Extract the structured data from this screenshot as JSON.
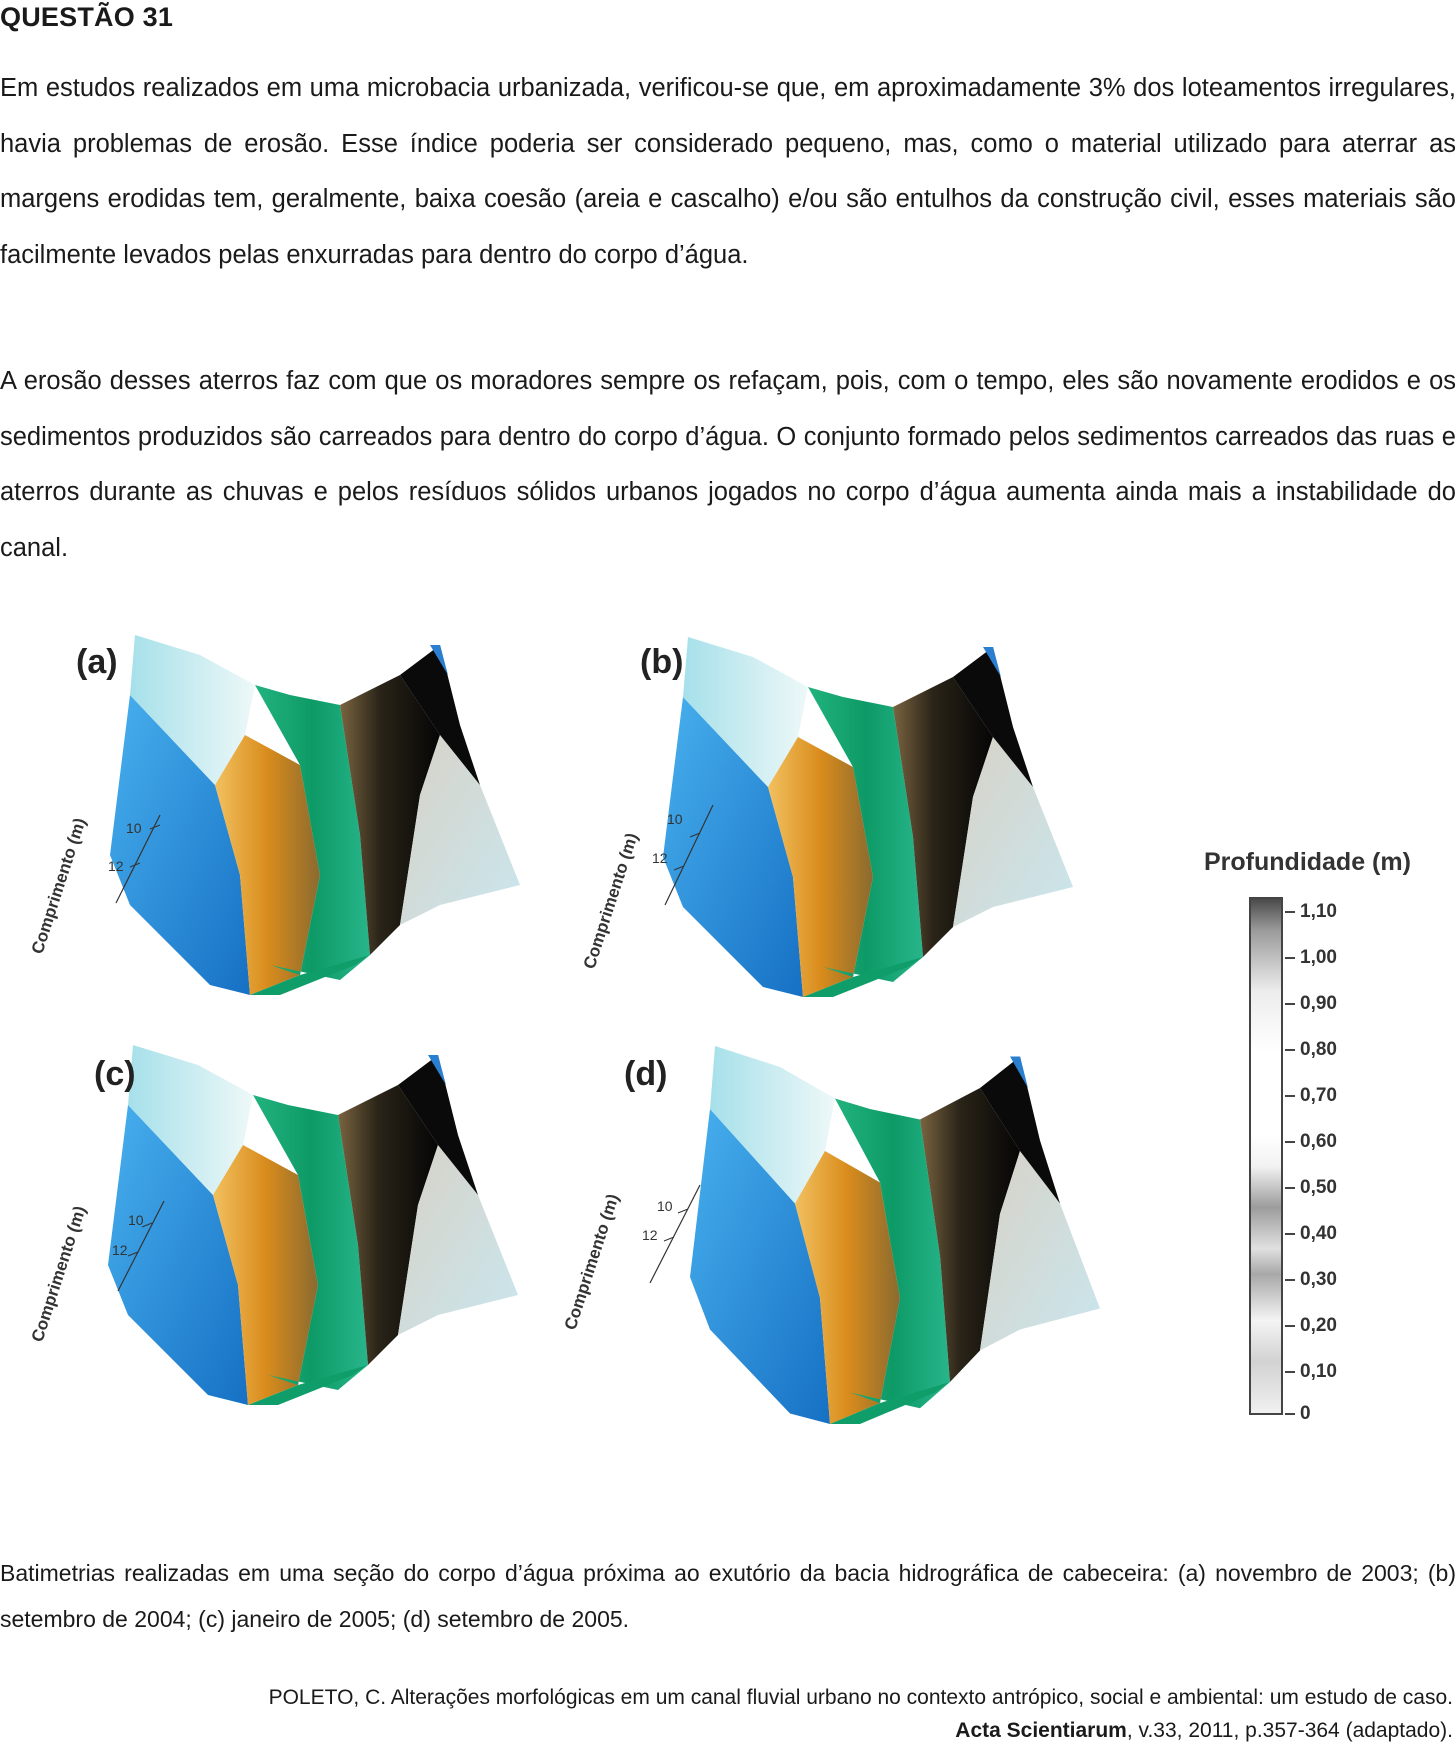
{
  "question": {
    "title": "QUESTÃO 31",
    "paragraph1": "Em estudos realizados em uma microbacia urbanizada, verificou-se que, em aproximadamente 3% dos loteamentos irregulares, havia problemas de erosão. Esse índice poderia ser considerado pequeno, mas, como o material utilizado para aterrar as margens erodidas tem, geralmente, baixa coesão (areia e cascalho) e/ou são entulhos da construção civil, esses materiais são facilmente levados pelas enxurradas para dentro do corpo d’água.",
    "paragraph2": "A erosão desses aterros faz com que os moradores sempre os refaçam, pois, com o tempo, eles são novamente erodidos e os sedimentos produzidos são carreados para dentro do corpo d’água. O conjunto formado pelos sedimentos carreados das ruas e aterros durante as chuvas e pelos resíduos sólidos urbanos jogados no corpo d’água aumenta ainda mais a instabilidade do canal."
  },
  "figure": {
    "panels": [
      {
        "label": "(a)",
        "axis_title": "Comprimento (m)",
        "ticks": [
          "10",
          "12"
        ]
      },
      {
        "label": "(b)",
        "axis_title": "Comprimento (m)",
        "ticks": [
          "10",
          "12"
        ]
      },
      {
        "label": "(c)",
        "axis_title": "Comprimento (m)",
        "ticks": [
          "10",
          "12"
        ]
      },
      {
        "label": "(d)",
        "axis_title": "Comprimento (m)",
        "ticks": [
          "10",
          "12"
        ]
      }
    ],
    "legend": {
      "title": "Profundidade (m)",
      "values": [
        "1,10",
        "1,00",
        "0,90",
        "0,80",
        "0,70",
        "0,60",
        "0,50",
        "0,40",
        "0,30",
        "0,20",
        "0,10",
        "0"
      ]
    },
    "colors": {
      "blue": "#1e88d8",
      "light_cyan": "#c8ecf0",
      "green": "#15a872",
      "orange": "#e6a02a",
      "black": "#0c0c0c",
      "light": "#e8e6e2"
    }
  },
  "caption": "Batimetrias realizadas em uma seção do corpo d’água próxima ao exutório da bacia hidrográfica de cabeceira: (a) novembro de 2003; (b) setembro de 2004; (c) janeiro de 2005; (d) setembro de 2005.",
  "source": {
    "line1": "POLETO, C. Alterações morfológicas em um canal fluvial urbano no contexto antrópico, social e ambiental: um estudo de caso.",
    "journal": "Acta Scientiarum",
    "details": ", v.33, 2011, p.357-364 (adaptado)."
  }
}
